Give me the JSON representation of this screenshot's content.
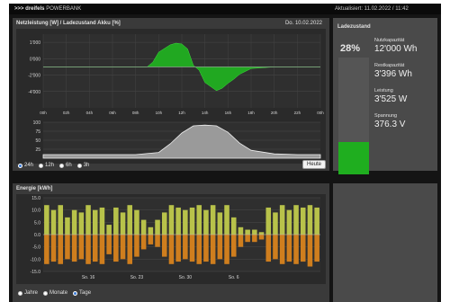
{
  "header": {
    "brand_prefix": ">>> dreifels",
    "brand_name": "POWERBANK",
    "updated": "Aktualisiert: 11.02.2022 / 11:42"
  },
  "power_panel": {
    "title": "Netzleistung [W] / Ladezustand Akku [%]",
    "date": "Do. 10.02.2022",
    "refresh_button": "Heute",
    "range_options": [
      {
        "label": "24h",
        "selected": true
      },
      {
        "label": "12h",
        "selected": false
      },
      {
        "label": "6h",
        "selected": false
      },
      {
        "label": "3h",
        "selected": false
      }
    ]
  },
  "energy_panel": {
    "title": "Energie [kWh]",
    "period_options": [
      {
        "label": "Jahre",
        "selected": false
      },
      {
        "label": "Monate",
        "selected": false
      },
      {
        "label": "Tage",
        "selected": true
      }
    ]
  },
  "status_panel": {
    "title": "Ladezustand",
    "percent_label": "28%",
    "soc_fraction": 0.28,
    "metrics": [
      {
        "label": "Nutzkapazität",
        "value": "12'000 Wh"
      },
      {
        "label": "Restkapazität",
        "value": "3'396 Wh"
      },
      {
        "label": "Leistung",
        "value": "3'525 W"
      },
      {
        "label": "Spannung",
        "value": "376.3 V"
      }
    ]
  },
  "colors": {
    "power": "#21a821",
    "soc_fill": "#9a9a9a",
    "energy_pos": "#b8c24a",
    "energy_neg": "#cf7e1e",
    "battery": "#1fae1f"
  },
  "chart_data": [
    {
      "type": "area",
      "title": "Netzleistung [W]",
      "x_ticks": [
        "00h",
        "02h",
        "04h",
        "06h",
        "08h",
        "10h",
        "12h",
        "14h",
        "16h",
        "18h",
        "20h",
        "22h",
        "00h"
      ],
      "y_ticks": [
        "1'000",
        "0'000",
        "-2'000",
        "-4'000"
      ],
      "ylim": [
        -5000,
        4000
      ],
      "series": [
        {
          "x": [
            0,
            2,
            4,
            6,
            8,
            9,
            9.5,
            10,
            11,
            11.5,
            12,
            12.5,
            13,
            13.5,
            14,
            14.5,
            15,
            15.5,
            16,
            16.5,
            17,
            18,
            20,
            22,
            24
          ],
          "values": [
            0,
            0,
            0,
            0,
            0,
            0,
            600,
            1800,
            2700,
            2900,
            2800,
            2200,
            200,
            -400,
            -1900,
            -2400,
            -2900,
            -2600,
            -2000,
            -1500,
            -900,
            -200,
            0,
            0,
            0
          ]
        }
      ]
    },
    {
      "type": "area",
      "title": "Ladezustand Akku [%]",
      "x_ticks": [],
      "y_ticks": [
        "100",
        "75",
        "50",
        "25"
      ],
      "ylim": [
        0,
        100
      ],
      "series": [
        {
          "x": [
            0,
            4,
            8,
            10,
            11,
            12,
            13,
            14,
            15,
            16,
            17,
            18,
            20,
            22,
            24
          ],
          "values": [
            10,
            10,
            10,
            16,
            40,
            70,
            90,
            92,
            90,
            72,
            42,
            22,
            12,
            10,
            10
          ]
        }
      ]
    },
    {
      "type": "bar",
      "title": "Energie [kWh]",
      "x_ticks": [
        "So. 16",
        "So. 23",
        "So. 30",
        "So. 6"
      ],
      "y_ticks": [
        "15.0",
        "10.0",
        "5.0",
        "0.0",
        "-5.0",
        "-10.0",
        "-15.0"
      ],
      "ylim": [
        -15,
        15
      ],
      "series": [
        {
          "name": "positive",
          "values": [
            12,
            10,
            12,
            7,
            10,
            9,
            12,
            10,
            11,
            4,
            11,
            9,
            12,
            10,
            6,
            3,
            6,
            9,
            12,
            11,
            10,
            11,
            12,
            10,
            12,
            9,
            12,
            7,
            3,
            2,
            2,
            1,
            11,
            9,
            12,
            10,
            12,
            11,
            12,
            11
          ]
        },
        {
          "name": "negative",
          "values": [
            -12,
            -11,
            -12,
            -10,
            -11,
            -10,
            -12,
            -11,
            -12,
            -8,
            -11,
            -10,
            -12,
            -9,
            -6,
            -4,
            -5,
            -9,
            -12,
            -11,
            -10,
            -11,
            -12,
            -11,
            -12,
            -10,
            -12,
            -9,
            -5,
            -3,
            -3,
            -2,
            -11,
            -10,
            -12,
            -11,
            -12,
            -11,
            -13,
            -11
          ]
        }
      ]
    }
  ]
}
